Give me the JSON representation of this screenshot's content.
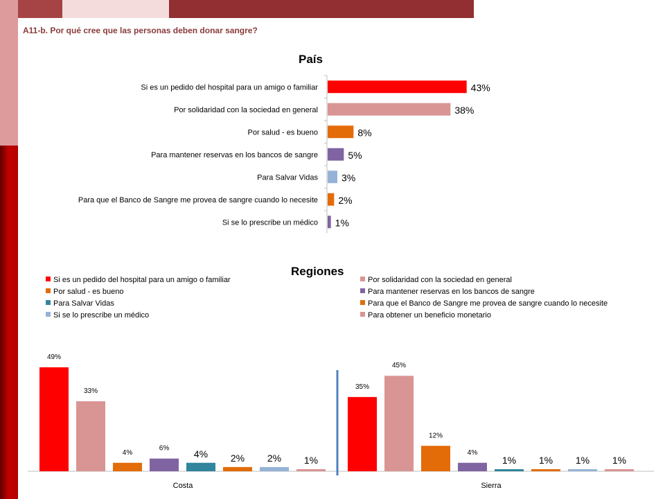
{
  "header": {
    "subtitle": "A11-b. Por qué cree que las personas deben donar sangre?"
  },
  "colors": {
    "accent_red": "#ff0000",
    "pink": "#d99594",
    "orange": "#e36c09",
    "purple": "#8064a2",
    "light_blue": "#95b3d7",
    "teal": "#31859c",
    "divider_blue": "#4f81bd"
  },
  "chart_data": [
    {
      "type": "bar",
      "orientation": "horizontal",
      "title": "País",
      "categories": [
        "Si es un pedido del hospital para un amigo o familiar",
        "Por solidaridad con la sociedad en general",
        "Por salud - es bueno",
        "Para mantener reservas en los bancos de sangre",
        "Para Salvar Vidas",
        "Para que el Banco de Sangre me provea de sangre cuando lo necesite",
        "Si se lo prescribe un médico"
      ],
      "values": [
        43,
        38,
        8,
        5,
        3,
        2,
        1
      ],
      "labels": [
        "43%",
        "38%",
        "8%",
        "5%",
        "3%",
        "2%",
        "1%"
      ],
      "colors": [
        "#ff0000",
        "#d99594",
        "#e36c09",
        "#8064a2",
        "#95b3d7",
        "#e36c09",
        "#8064a2"
      ],
      "xlim": [
        0,
        45
      ]
    },
    {
      "type": "bar",
      "title": "Regiones",
      "categories": [
        "Costa",
        "Sierra"
      ],
      "legend_placement": "top",
      "ylim": [
        0,
        50
      ],
      "series": [
        {
          "name": "Si es un pedido del hospital para un amigo o familiar",
          "color": "#ff0000",
          "values": [
            49,
            35
          ],
          "labels": [
            "49%",
            "35%"
          ]
        },
        {
          "name": "Por solidaridad con la sociedad en general",
          "color": "#d99594",
          "values": [
            33,
            45
          ],
          "labels": [
            "33%",
            "45%"
          ]
        },
        {
          "name": "Por salud - es bueno",
          "color": "#e36c09",
          "values": [
            4,
            12
          ],
          "labels": [
            "4%",
            "12%"
          ]
        },
        {
          "name": "Para mantener reservas en los bancos de sangre",
          "color": "#8064a2",
          "values": [
            6,
            4
          ],
          "labels": [
            "6%",
            "4%"
          ]
        },
        {
          "name": "Para Salvar Vidas",
          "color": "#31859c",
          "values": [
            4,
            1
          ],
          "labels": [
            "4%",
            "1%"
          ]
        },
        {
          "name": "Para que el Banco de Sangre me provea de sangre cuando lo necesite",
          "color": "#e36c09",
          "values": [
            2,
            1
          ],
          "labels": [
            "2%",
            "1%"
          ]
        },
        {
          "name": "Si se lo prescribe un médico",
          "color": "#95b3d7",
          "values": [
            2,
            1
          ],
          "labels": [
            "2%",
            "1%"
          ]
        },
        {
          "name": "Para obtener un beneficio monetario",
          "color": "#d99594",
          "values": [
            1,
            1
          ],
          "labels": [
            "1%",
            "1%"
          ]
        }
      ]
    }
  ]
}
